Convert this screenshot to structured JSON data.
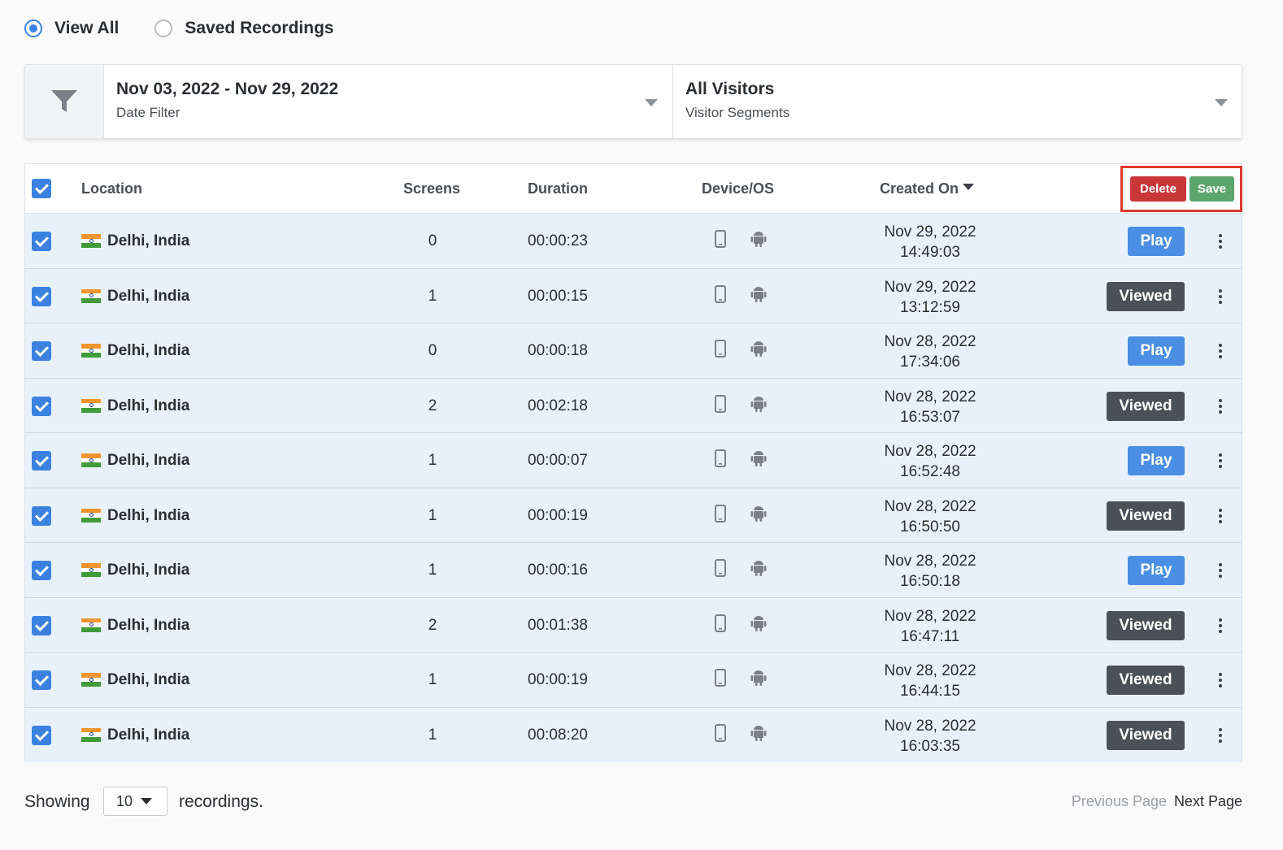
{
  "view_options": [
    {
      "label": "View All",
      "selected": true
    },
    {
      "label": "Saved Recordings",
      "selected": false
    }
  ],
  "filters": {
    "date": {
      "value": "Nov 03, 2022 - Nov 29, 2022",
      "label": "Date Filter"
    },
    "segment": {
      "value": "All Visitors",
      "label": "Visitor Segments"
    }
  },
  "table": {
    "headers": {
      "location": "Location",
      "screens": "Screens",
      "duration": "Duration",
      "device_os": "Device/OS",
      "created_on": "Created On"
    },
    "actions": {
      "delete": "Delete",
      "save": "Save"
    },
    "rows": [
      {
        "location": "Delhi, India",
        "screens": "0",
        "duration": "00:00:23",
        "date": "Nov 29, 2022",
        "time": "14:49:03",
        "action": "Play",
        "checked": true
      },
      {
        "location": "Delhi, India",
        "screens": "1",
        "duration": "00:00:15",
        "date": "Nov 29, 2022",
        "time": "13:12:59",
        "action": "Viewed",
        "checked": true
      },
      {
        "location": "Delhi, India",
        "screens": "0",
        "duration": "00:00:18",
        "date": "Nov 28, 2022",
        "time": "17:34:06",
        "action": "Play",
        "checked": true
      },
      {
        "location": "Delhi, India",
        "screens": "2",
        "duration": "00:02:18",
        "date": "Nov 28, 2022",
        "time": "16:53:07",
        "action": "Viewed",
        "checked": true
      },
      {
        "location": "Delhi, India",
        "screens": "1",
        "duration": "00:00:07",
        "date": "Nov 28, 2022",
        "time": "16:52:48",
        "action": "Play",
        "checked": true
      },
      {
        "location": "Delhi, India",
        "screens": "1",
        "duration": "00:00:19",
        "date": "Nov 28, 2022",
        "time": "16:50:50",
        "action": "Viewed",
        "checked": true
      },
      {
        "location": "Delhi, India",
        "screens": "1",
        "duration": "00:00:16",
        "date": "Nov 28, 2022",
        "time": "16:50:18",
        "action": "Play",
        "checked": true
      },
      {
        "location": "Delhi, India",
        "screens": "2",
        "duration": "00:01:38",
        "date": "Nov 28, 2022",
        "time": "16:47:11",
        "action": "Viewed",
        "checked": true
      },
      {
        "location": "Delhi, India",
        "screens": "1",
        "duration": "00:00:19",
        "date": "Nov 28, 2022",
        "time": "16:44:15",
        "action": "Viewed",
        "checked": true
      },
      {
        "location": "Delhi, India",
        "screens": "1",
        "duration": "00:08:20",
        "date": "Nov 28, 2022",
        "time": "16:03:35",
        "action": "Viewed",
        "checked": true
      }
    ]
  },
  "footer": {
    "showing": "Showing",
    "page_size": "10",
    "suffix": "recordings.",
    "prev": "Previous Page",
    "next": "Next Page"
  },
  "icons": {
    "filter": "filter-funnel-icon",
    "device": "mobile-phone-icon",
    "os": "android-icon",
    "row_menu": "more-vertical-icon"
  },
  "colors": {
    "accent": "#3b82e0",
    "play": "#4a8fe3",
    "viewed": "#4a5159",
    "delete": "#c8373a",
    "save": "#5ca66c",
    "highlight": "#e03a2c",
    "row_bg": "#e8f1fa"
  }
}
